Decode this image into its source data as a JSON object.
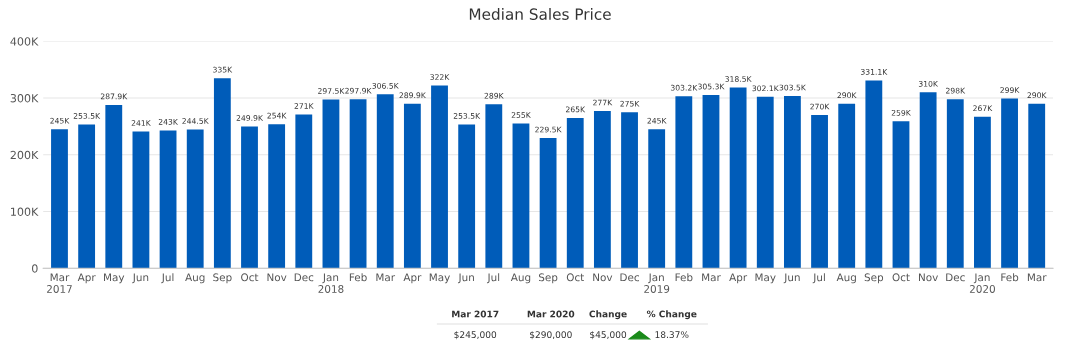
{
  "chart_data": {
    "type": "bar",
    "title": "Median Sales Price",
    "categories": [
      "Mar\n2017",
      "Apr",
      "May",
      "Jun",
      "Jul",
      "Aug",
      "Sep",
      "Oct",
      "Nov",
      "Dec",
      "Jan\n2018",
      "Feb",
      "Mar",
      "Apr",
      "May",
      "Jun",
      "Jul",
      "Aug",
      "Sep",
      "Oct",
      "Nov",
      "Dec",
      "Jan\n2019",
      "Feb",
      "Mar",
      "Apr",
      "May",
      "Jun",
      "Jul",
      "Aug",
      "Sep",
      "Oct",
      "Nov",
      "Dec",
      "Jan\n2020",
      "Feb",
      "Mar"
    ],
    "values": [
      245000,
      253500,
      287900,
      241000,
      243000,
      244500,
      335000,
      249900,
      254000,
      271000,
      297500,
      297900,
      306500,
      289900,
      322000,
      253500,
      289000,
      255000,
      229500,
      265000,
      277000,
      275000,
      245000,
      303200,
      305300,
      318500,
      302100,
      303500,
      270000,
      290000,
      331100,
      259000,
      310000,
      298000,
      267000,
      299000,
      290000
    ],
    "value_labels": [
      "245K",
      "253.5K",
      "287.9K",
      "241K",
      "243K",
      "244.5K",
      "335K",
      "249.9K",
      "254K",
      "271K",
      "297.5K",
      "297.9K",
      "306.5K",
      "289.9K",
      "322K",
      "253.5K",
      "289K",
      "255K",
      "229.5K",
      "265K",
      "277K",
      "275K",
      "245K",
      "303.2K",
      "305.3K",
      "318.5K",
      "302.1K",
      "303.5K",
      "270K",
      "290K",
      "331.1K",
      "259K",
      "310K",
      "298K",
      "267K",
      "299K",
      "290K"
    ],
    "color": "#005cb9",
    "ylim": [
      0,
      400000
    ],
    "yticks": [
      {
        "value": 0,
        "label": "0"
      },
      {
        "value": 100000,
        "label": "100K"
      },
      {
        "value": 200000,
        "label": "200K"
      },
      {
        "value": 300000,
        "label": "300K"
      },
      {
        "value": 400000,
        "label": "400K"
      }
    ],
    "grid": "y",
    "legend": false,
    "annotations": [
      "Mar 2017",
      "Mar 2020",
      "Change",
      "% Change",
      "$245,000",
      "$290,000",
      "$45,000",
      "18.37%"
    ]
  }
}
